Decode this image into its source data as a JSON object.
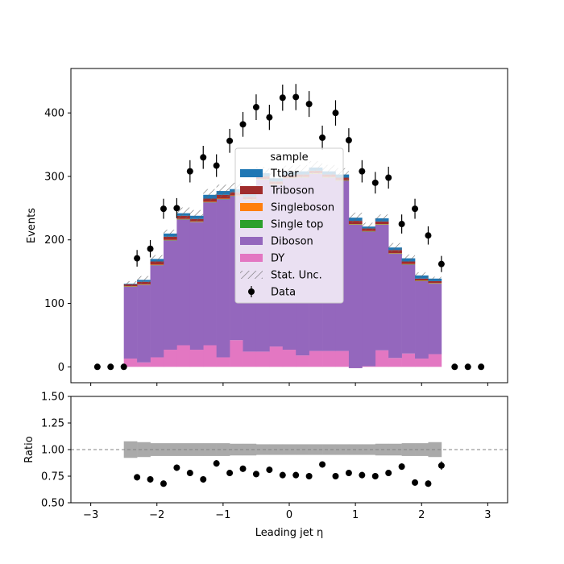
{
  "chart_data": {
    "type": "bar",
    "subtype": "stacked-histogram-with-ratio",
    "main_panel": {
      "ylabel": "Events",
      "ylim": [
        -25,
        470
      ],
      "yticks": [
        0,
        100,
        200,
        300,
        400
      ],
      "xlim": [
        -3.3,
        3.3
      ],
      "bin_edges": [
        -2.5,
        -2.3,
        -2.1,
        -1.9,
        -1.7,
        -1.5,
        -1.3,
        -1.1,
        -0.9,
        -0.7,
        -0.5,
        -0.3,
        -0.1,
        0.1,
        0.3,
        0.5,
        0.7,
        0.9,
        1.1,
        1.3,
        1.5,
        1.7,
        1.9,
        2.1,
        2.3
      ],
      "series": [
        {
          "name": "DY",
          "color": "#e377c2",
          "values": [
            13,
            7,
            15,
            27,
            34,
            27,
            34,
            15,
            42,
            24,
            24,
            32,
            27,
            18,
            25,
            25,
            25,
            -2,
            1,
            26,
            14,
            21,
            13,
            20
          ]
        },
        {
          "name": "Diboson",
          "color": "#9467bd",
          "values": [
            113,
            122,
            145,
            172,
            198,
            201,
            225,
            249,
            227,
            239,
            271,
            255,
            270,
            280,
            279,
            273,
            268,
            226,
            212,
            198,
            164,
            140,
            122,
            111
          ]
        },
        {
          "name": "Single top",
          "color": "#2ca02c",
          "values": [
            0.5,
            0.5,
            0.5,
            0.5,
            0.5,
            0.5,
            0.5,
            0.5,
            0.5,
            0.5,
            0.5,
            0.5,
            0.5,
            0.5,
            0.5,
            0.5,
            0.5,
            0.5,
            0.5,
            0.5,
            0.5,
            0.5,
            0.5,
            0.5
          ]
        },
        {
          "name": "Singleboson",
          "color": "#ff7f0e",
          "values": [
            0.5,
            0.5,
            0.5,
            0.5,
            0.5,
            0.5,
            0.5,
            0.5,
            0.5,
            0.5,
            0.5,
            0.5,
            0.5,
            0.5,
            0.5,
            0.5,
            0.5,
            0.5,
            0.5,
            0.5,
            0.5,
            0.5,
            0.5,
            0.5
          ]
        },
        {
          "name": "Triboson",
          "color": "#a02c2c",
          "values": [
            3,
            4,
            5,
            5,
            5,
            4,
            5,
            6,
            5,
            4,
            4,
            4,
            4,
            4,
            4,
            4,
            4,
            5,
            4,
            4,
            5,
            4,
            3,
            3
          ]
        },
        {
          "name": "Ttbar",
          "color": "#1f77b4",
          "values": [
            1,
            3,
            4,
            5,
            4,
            5,
            6,
            6,
            5,
            5,
            5,
            5,
            5,
            5,
            5,
            5,
            5,
            5,
            3,
            5,
            4,
            5,
            5,
            4
          ]
        }
      ],
      "stat_unc_half_width": [
        4,
        6,
        6,
        6,
        9,
        9,
        9,
        10,
        10,
        10,
        10,
        10,
        10,
        10,
        10,
        10,
        10,
        8,
        6,
        6,
        7,
        6,
        5,
        3
      ],
      "data": {
        "name": "Data",
        "x": [
          -2.9,
          -2.7,
          -2.5,
          -2.3,
          -2.1,
          -1.9,
          -1.7,
          -1.5,
          -1.3,
          -1.1,
          -0.9,
          -0.7,
          -0.5,
          -0.3,
          -0.1,
          0.1,
          0.3,
          0.5,
          0.7,
          0.9,
          1.1,
          1.3,
          1.5,
          1.7,
          1.9,
          2.1,
          2.3,
          2.5,
          2.7,
          2.9
        ],
        "y": [
          0,
          0,
          0,
          171,
          186,
          249,
          250,
          308,
          330,
          317,
          356,
          382,
          409,
          393,
          424,
          425,
          414,
          361,
          400,
          357,
          308,
          290,
          298,
          225,
          249,
          207,
          162,
          0,
          0,
          0
        ]
      },
      "legend": {
        "title": "sample",
        "entries": [
          "Ttbar",
          "Triboson",
          "Singleboson",
          "Single top",
          "Diboson",
          "DY",
          "Stat. Unc.",
          "Data"
        ],
        "placement": "upper-center"
      }
    },
    "ratio_panel": {
      "ylabel": "Ratio",
      "ylim": [
        0.5,
        1.5
      ],
      "yticks": [
        "0.50",
        "0.75",
        "1.00",
        "1.25",
        "1.50"
      ],
      "reference_line": 1.0,
      "unc_band_half_width": [
        0.078,
        0.07,
        0.06,
        0.06,
        0.06,
        0.06,
        0.06,
        0.06,
        0.055,
        0.055,
        0.05,
        0.05,
        0.05,
        0.05,
        0.05,
        0.05,
        0.05,
        0.05,
        0.05,
        0.055,
        0.055,
        0.06,
        0.06,
        0.07
      ],
      "x": [
        -2.3,
        -2.1,
        -1.9,
        -1.7,
        -1.5,
        -1.3,
        -1.1,
        -0.9,
        -0.7,
        -0.5,
        -0.3,
        -0.1,
        0.1,
        0.3,
        0.5,
        0.7,
        0.9,
        1.1,
        1.3,
        1.5,
        1.7,
        1.9,
        2.1,
        2.3
      ],
      "y": [
        0.74,
        0.72,
        0.68,
        0.83,
        0.78,
        0.72,
        0.87,
        0.78,
        0.82,
        0.77,
        0.81,
        0.76,
        0.76,
        0.75,
        0.86,
        0.75,
        0.78,
        0.76,
        0.75,
        0.78,
        0.84,
        0.69,
        0.68,
        0.85
      ],
      "err": [
        0.03,
        0.03,
        0.03,
        0.03,
        0.03,
        0.03,
        0.03,
        0.03,
        0.03,
        0.03,
        0.03,
        0.03,
        0.03,
        0.03,
        0.03,
        0.03,
        0.03,
        0.03,
        0.03,
        0.03,
        0.03,
        0.03,
        0.03,
        0.04
      ]
    },
    "xlabel": "Leading jet  η",
    "xticks": [
      -3,
      -2,
      -1,
      0,
      1,
      2,
      3
    ],
    "xlim": [
      -3.3,
      3.3
    ]
  }
}
